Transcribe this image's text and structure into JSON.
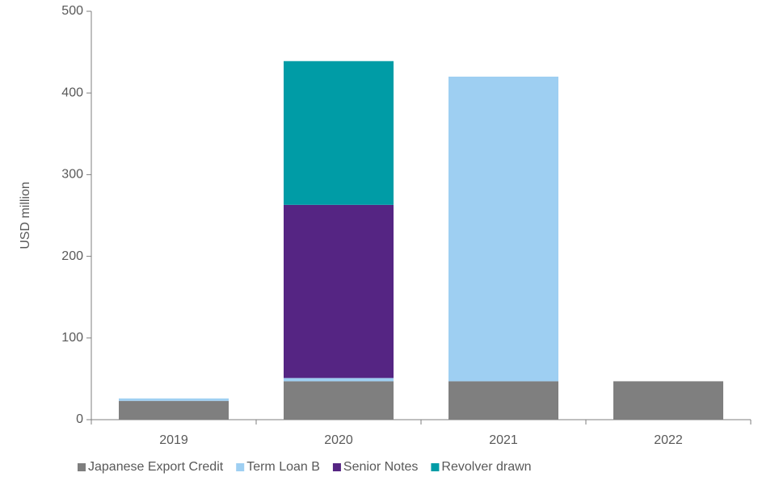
{
  "chart_data": {
    "type": "stacked_bar",
    "y_label": "USD million",
    "categories": [
      "2019",
      "2020",
      "2021",
      "2022"
    ],
    "series": [
      {
        "name": "Japanese Export Credit",
        "color": "#7f7f7f",
        "values": [
          23,
          47,
          47,
          47
        ]
      },
      {
        "name": "Term Loan B",
        "color": "#9ecff2",
        "values": [
          3,
          4,
          373,
          0
        ]
      },
      {
        "name": "Senior Notes",
        "color": "#552583",
        "values": [
          0,
          212,
          0,
          0
        ]
      },
      {
        "name": "Revolver drawn",
        "color": "#009ca6",
        "values": [
          0,
          176,
          0,
          0
        ]
      }
    ],
    "ylim": [
      0,
      500
    ],
    "yticks": [
      0,
      100,
      200,
      300,
      400,
      500
    ],
    "legend": "bottom"
  }
}
